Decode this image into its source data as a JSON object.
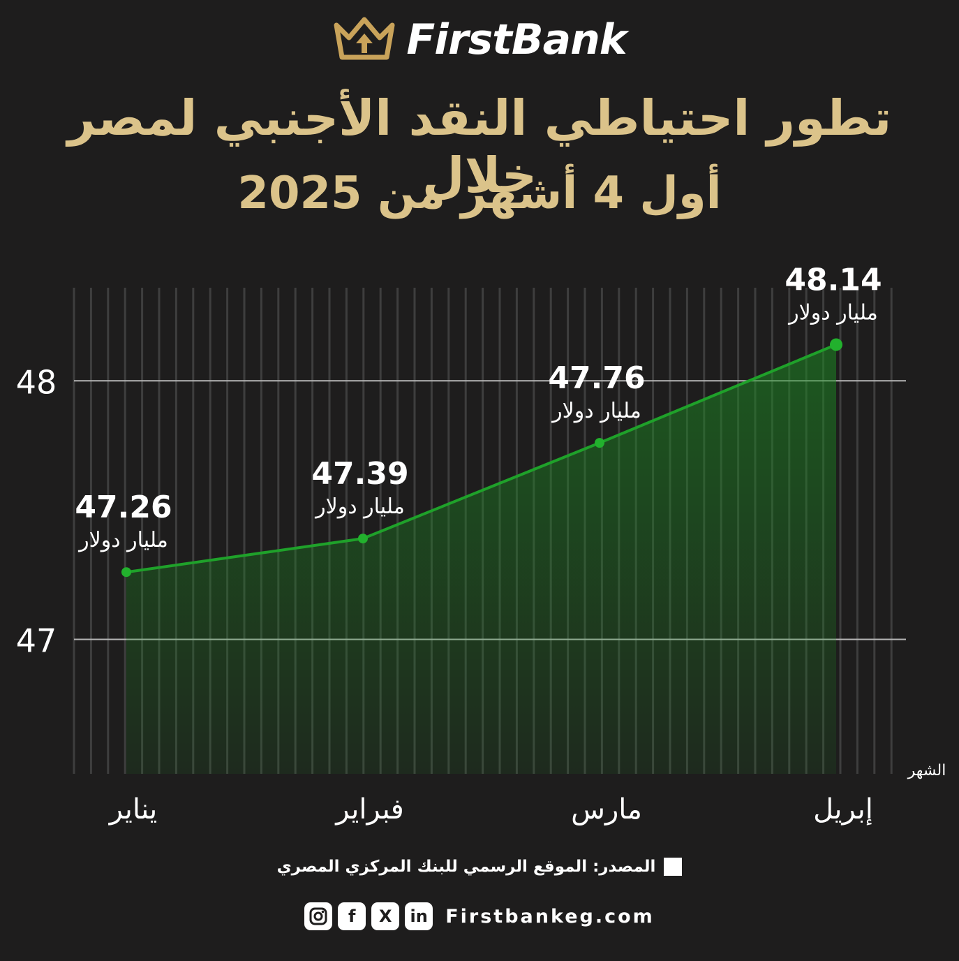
{
  "brand": {
    "name": "FirstBank"
  },
  "title": {
    "line1": "تطور احتياطي النقد الأجنبي لمصر خلال",
    "line2": "أول 4 أشهر من 2025"
  },
  "chart_data": {
    "type": "area",
    "categories": [
      "يناير",
      "فبراير",
      "مارس",
      "إبريل"
    ],
    "values": [
      47.26,
      47.39,
      47.76,
      48.14
    ],
    "value_labels": [
      "47.26",
      "47.39",
      "47.76",
      "48.14"
    ],
    "unit_label": "مليار دولار",
    "xlabel": "الشهر",
    "ylabel": "",
    "yticks": [
      47,
      48
    ],
    "ylim": [
      46.48,
      48.36
    ],
    "grid": true,
    "colors": {
      "line": "#1fa12a",
      "fill": "#1c8a22",
      "point": "#22b12d",
      "grid": "#b5b5b5",
      "stripe": "#3e3e3e"
    }
  },
  "source": {
    "text": "المصدر: الموقع الرسمي للبنك المركزي المصري"
  },
  "footer": {
    "website": "Firstbankeg.com",
    "social_icons": [
      "instagram-icon",
      "facebook-icon",
      "x-icon",
      "linkedin-icon"
    ],
    "facebook_glyph": "f",
    "x_glyph": "X",
    "linkedin_glyph": "in"
  },
  "colors": {
    "background": "#1e1d1d",
    "title": "#dbc38a",
    "logo_gold": "#c9a35a"
  }
}
